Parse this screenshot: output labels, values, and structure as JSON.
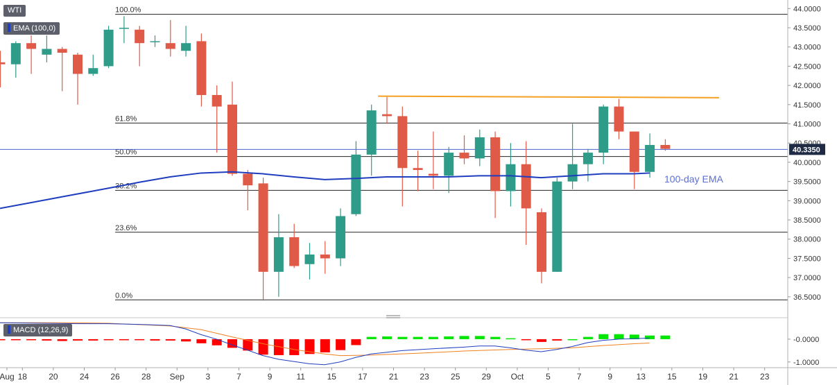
{
  "title": "WTI",
  "indicators": {
    "ema_label": "EMA (100,0)",
    "macd_label": "MACD (12,26,9)",
    "ema_annotation": "100-day EMA"
  },
  "colors": {
    "bull": "#2f9b89",
    "bear": "#e05a48",
    "ema": "#1f3dbf",
    "resistance": "#f5a022",
    "macd_line": "#1f3dbf",
    "signal_line": "#f08020",
    "hist_pos": "#00e600",
    "hist_neg": "#ff0000",
    "price_tag": "#1f2a44"
  },
  "price_tag": "40.3350",
  "chart_data": [
    {
      "type": "candlestick",
      "y_ticks": [
        "44.0000",
        "43.5000",
        "43.0000",
        "42.5000",
        "42.0000",
        "41.5000",
        "41.0000",
        "40.5000",
        "40.0000",
        "39.5000",
        "39.0000",
        "38.5000",
        "38.0000",
        "37.5000",
        "37.0000",
        "36.5000"
      ],
      "y_tick_values": [
        44.0,
        43.5,
        43.0,
        42.5,
        42.0,
        41.5,
        41.0,
        40.5,
        40.0,
        39.5,
        39.0,
        38.5,
        38.0,
        37.5,
        37.0,
        36.5
      ],
      "ylim": [
        36.1,
        44.15
      ],
      "x_ticks": [
        {
          "label": "Aug",
          "day": 0
        },
        {
          "label": "18",
          "day": 1
        },
        {
          "label": "20",
          "day": 3
        },
        {
          "label": "24",
          "day": 5
        },
        {
          "label": "26",
          "day": 7
        },
        {
          "label": "28",
          "day": 9
        },
        {
          "label": "Sep",
          "day": 11
        },
        {
          "label": "3",
          "day": 13
        },
        {
          "label": "7",
          "day": 15
        },
        {
          "label": "9",
          "day": 17
        },
        {
          "label": "11",
          "day": 19
        },
        {
          "label": "15",
          "day": 21
        },
        {
          "label": "17",
          "day": 23
        },
        {
          "label": "21",
          "day": 25
        },
        {
          "label": "23",
          "day": 27
        },
        {
          "label": "25",
          "day": 29
        },
        {
          "label": "29",
          "day": 31
        },
        {
          "label": "Oct",
          "day": 33
        },
        {
          "label": "5",
          "day": 35
        },
        {
          "label": "7",
          "day": 37
        },
        {
          "label": "9",
          "day": 39
        },
        {
          "label": "13",
          "day": 41
        },
        {
          "label": "15",
          "day": 43
        },
        {
          "label": "19",
          "day": 45
        },
        {
          "label": "21",
          "day": 47
        },
        {
          "label": "23",
          "day": 49
        }
      ],
      "candles": [
        {
          "o": 42.6,
          "h": 42.9,
          "l": 41.95,
          "c": 42.55
        },
        {
          "o": 42.55,
          "h": 43.15,
          "l": 42.2,
          "c": 43.1
        },
        {
          "o": 43.1,
          "h": 43.3,
          "l": 42.3,
          "c": 42.95
        },
        {
          "o": 42.8,
          "h": 43.3,
          "l": 42.6,
          "c": 42.95
        },
        {
          "o": 42.95,
          "h": 43.0,
          "l": 41.85,
          "c": 42.85
        },
        {
          "o": 42.8,
          "h": 42.85,
          "l": 41.5,
          "c": 42.3
        },
        {
          "o": 42.3,
          "h": 42.8,
          "l": 42.25,
          "c": 42.45
        },
        {
          "o": 42.5,
          "h": 43.55,
          "l": 42.45,
          "c": 43.45
        },
        {
          "o": 43.5,
          "h": 43.8,
          "l": 43.1,
          "c": 43.5
        },
        {
          "o": 43.45,
          "h": 43.55,
          "l": 42.5,
          "c": 43.1
        },
        {
          "o": 43.15,
          "h": 43.3,
          "l": 43.0,
          "c": 43.15
        },
        {
          "o": 43.1,
          "h": 43.7,
          "l": 42.75,
          "c": 42.95
        },
        {
          "o": 42.9,
          "h": 43.55,
          "l": 42.75,
          "c": 43.1
        },
        {
          "o": 43.15,
          "h": 43.35,
          "l": 41.45,
          "c": 41.75
        },
        {
          "o": 41.75,
          "h": 42.0,
          "l": 40.25,
          "c": 41.45
        },
        {
          "o": 41.5,
          "h": 42.1,
          "l": 39.65,
          "c": 39.7
        },
        {
          "o": 39.7,
          "h": 39.8,
          "l": 38.75,
          "c": 39.4
        },
        {
          "o": 39.45,
          "h": 39.6,
          "l": 36.4,
          "c": 37.15
        },
        {
          "o": 37.15,
          "h": 38.65,
          "l": 36.5,
          "c": 38.05
        },
        {
          "o": 38.05,
          "h": 38.4,
          "l": 37.25,
          "c": 37.3
        },
        {
          "o": 37.35,
          "h": 37.9,
          "l": 36.95,
          "c": 37.6
        },
        {
          "o": 37.6,
          "h": 37.95,
          "l": 37.1,
          "c": 37.5
        },
        {
          "o": 37.5,
          "h": 38.8,
          "l": 37.3,
          "c": 38.6
        },
        {
          "o": 38.65,
          "h": 40.55,
          "l": 38.6,
          "c": 40.2
        },
        {
          "o": 40.2,
          "h": 41.5,
          "l": 39.65,
          "c": 41.35
        },
        {
          "o": 41.25,
          "h": 41.7,
          "l": 41.0,
          "c": 41.2
        },
        {
          "o": 41.2,
          "h": 41.45,
          "l": 38.85,
          "c": 39.85
        },
        {
          "o": 39.85,
          "h": 40.3,
          "l": 39.25,
          "c": 39.8
        },
        {
          "o": 39.7,
          "h": 40.8,
          "l": 39.3,
          "c": 39.65
        },
        {
          "o": 39.65,
          "h": 40.4,
          "l": 39.2,
          "c": 40.25
        },
        {
          "o": 40.25,
          "h": 40.7,
          "l": 39.95,
          "c": 40.1
        },
        {
          "o": 40.1,
          "h": 40.85,
          "l": 39.9,
          "c": 40.65
        },
        {
          "o": 40.65,
          "h": 40.8,
          "l": 38.55,
          "c": 39.25
        },
        {
          "o": 39.25,
          "h": 40.5,
          "l": 38.85,
          "c": 39.95
        },
        {
          "o": 39.95,
          "h": 40.55,
          "l": 37.85,
          "c": 38.8
        },
        {
          "o": 38.7,
          "h": 38.8,
          "l": 36.85,
          "c": 37.15
        },
        {
          "o": 37.15,
          "h": 39.6,
          "l": 37.15,
          "c": 39.5
        },
        {
          "o": 39.5,
          "h": 41.0,
          "l": 39.3,
          "c": 39.95
        },
        {
          "o": 39.95,
          "h": 40.35,
          "l": 39.5,
          "c": 40.25
        },
        {
          "o": 40.25,
          "h": 41.5,
          "l": 39.95,
          "c": 41.45
        },
        {
          "o": 41.45,
          "h": 41.65,
          "l": 40.6,
          "c": 40.8
        },
        {
          "o": 40.8,
          "h": 40.8,
          "l": 39.3,
          "c": 39.75
        },
        {
          "o": 39.75,
          "h": 40.75,
          "l": 39.6,
          "c": 40.45
        },
        {
          "o": 40.45,
          "h": 40.6,
          "l": 40.3,
          "c": 40.35
        }
      ],
      "ema": [
        [
          0,
          38.8
        ],
        [
          2,
          38.95
        ],
        [
          4,
          39.1
        ],
        [
          6,
          39.25
        ],
        [
          8,
          39.4
        ],
        [
          9,
          39.48
        ],
        [
          11,
          39.62
        ],
        [
          13,
          39.72
        ],
        [
          15,
          39.75
        ],
        [
          17,
          39.7
        ],
        [
          19,
          39.62
        ],
        [
          21,
          39.55
        ],
        [
          23,
          39.58
        ],
        [
          25,
          39.62
        ],
        [
          27,
          39.62
        ],
        [
          29,
          39.62
        ],
        [
          31,
          39.65
        ],
        [
          33,
          39.65
        ],
        [
          35,
          39.6
        ],
        [
          37,
          39.65
        ],
        [
          39,
          39.7
        ],
        [
          41,
          39.7
        ],
        [
          42,
          39.72
        ]
      ],
      "fib_levels": [
        {
          "label": "100.0%",
          "value": 43.85
        },
        {
          "label": "61.8%",
          "value": 41.02
        },
        {
          "label": "50.0%",
          "value": 40.15
        },
        {
          "label": "38.2%",
          "value": 39.27
        },
        {
          "label": "23.6%",
          "value": 38.18
        },
        {
          "label": "0.0%",
          "value": 36.42
        }
      ],
      "fib_start_day": 7,
      "resistance": {
        "start_day": 24,
        "end_day": 46.5,
        "start_value": 41.72,
        "end_value": 41.68
      },
      "current_price": 40.335
    },
    {
      "type": "macd",
      "y_ticks": [
        "-0.0000",
        "-1.0000"
      ],
      "y_tick_values": [
        0.0,
        -1.0
      ],
      "ylim": [
        -1.25,
        0.82
      ],
      "histogram": [
        -0.02,
        -0.04,
        -0.04,
        -0.06,
        -0.08,
        -0.06,
        -0.06,
        -0.04,
        -0.04,
        -0.04,
        -0.06,
        -0.06,
        -0.1,
        -0.18,
        -0.27,
        -0.38,
        -0.5,
        -0.68,
        -0.7,
        -0.7,
        -0.65,
        -0.58,
        -0.48,
        -0.26,
        0.1,
        0.12,
        0.1,
        0.1,
        0.1,
        0.12,
        0.14,
        0.14,
        0.1,
        0.04,
        -0.03,
        -0.12,
        -0.06,
        0.0,
        0.1,
        0.22,
        0.22,
        0.2,
        0.16,
        0.16
      ],
      "macd": [
        [
          0,
          0.72
        ],
        [
          3,
          0.7
        ],
        [
          5,
          0.68
        ],
        [
          7,
          0.68
        ],
        [
          9,
          0.65
        ],
        [
          11,
          0.6
        ],
        [
          12,
          0.45
        ],
        [
          13,
          0.2
        ],
        [
          14,
          0.0
        ],
        [
          15,
          -0.25
        ],
        [
          16,
          -0.48
        ],
        [
          17,
          -0.72
        ],
        [
          18,
          -0.88
        ],
        [
          19,
          -0.98
        ],
        [
          20,
          -1.08
        ],
        [
          21,
          -1.12
        ],
        [
          22,
          -1.0
        ],
        [
          23,
          -0.8
        ],
        [
          24,
          -0.65
        ],
        [
          26,
          -0.5
        ],
        [
          28,
          -0.42
        ],
        [
          30,
          -0.35
        ],
        [
          31,
          -0.3
        ],
        [
          32,
          -0.3
        ],
        [
          33,
          -0.38
        ],
        [
          34,
          -0.48
        ],
        [
          35,
          -0.55
        ],
        [
          36,
          -0.45
        ],
        [
          37,
          -0.32
        ],
        [
          38,
          -0.15
        ],
        [
          39,
          -0.05
        ],
        [
          40,
          0.0
        ],
        [
          41,
          0.02
        ],
        [
          42,
          0.05
        ]
      ],
      "signal": [
        [
          0,
          0.72
        ],
        [
          4,
          0.72
        ],
        [
          7,
          0.7
        ],
        [
          11,
          0.58
        ],
        [
          13,
          0.42
        ],
        [
          15,
          0.1
        ],
        [
          17,
          -0.2
        ],
        [
          19,
          -0.45
        ],
        [
          21,
          -0.65
        ],
        [
          22,
          -0.72
        ],
        [
          24,
          -0.7
        ],
        [
          27,
          -0.62
        ],
        [
          30,
          -0.52
        ],
        [
          33,
          -0.45
        ],
        [
          35,
          -0.42
        ],
        [
          37,
          -0.38
        ],
        [
          39,
          -0.28
        ],
        [
          41,
          -0.2
        ],
        [
          42,
          -0.17
        ]
      ]
    }
  ]
}
